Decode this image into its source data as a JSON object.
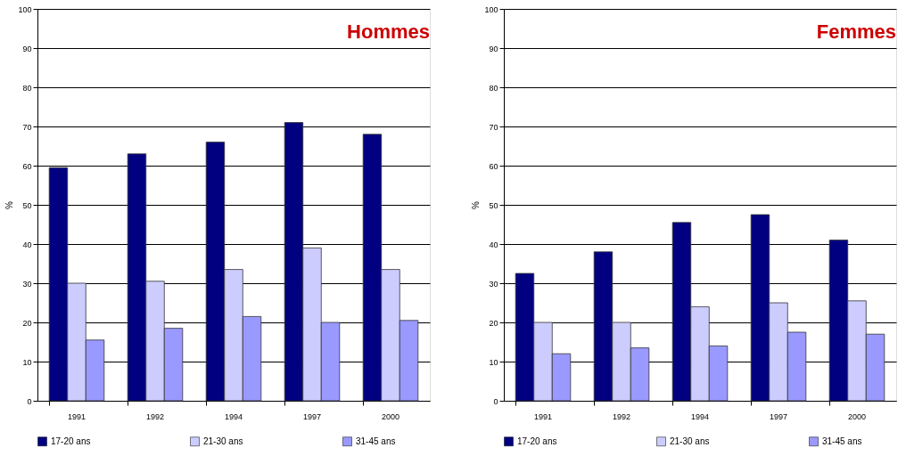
{
  "chart_data": [
    {
      "type": "bar",
      "title": "Hommes",
      "ylabel": "%",
      "categories": [
        "1991",
        "1992",
        "1994",
        "1997",
        "2000"
      ],
      "ylim": [
        0,
        100
      ],
      "yticks": [
        0,
        10,
        20,
        30,
        40,
        50,
        60,
        70,
        80,
        90,
        100
      ],
      "grid": "y",
      "legend": "bottom",
      "series": [
        {
          "name": "17-20 ans",
          "color": "#000080",
          "values": [
            59.5,
            63,
            66,
            71,
            68
          ]
        },
        {
          "name": "21-30 ans",
          "color": "#ccccff",
          "values": [
            30,
            30.5,
            33.5,
            39,
            33.5
          ]
        },
        {
          "name": "31-45 ans",
          "color": "#9999ff",
          "values": [
            15.5,
            18.5,
            21.5,
            20,
            20.5
          ]
        }
      ]
    },
    {
      "type": "bar",
      "title": "Femmes",
      "ylabel": "%",
      "categories": [
        "1991",
        "1992",
        "1994",
        "1997",
        "2000"
      ],
      "ylim": [
        0,
        100
      ],
      "yticks": [
        0,
        10,
        20,
        30,
        40,
        50,
        60,
        70,
        80,
        90,
        100
      ],
      "grid": "y",
      "legend": "bottom",
      "series": [
        {
          "name": "17-20 ans",
          "color": "#000080",
          "values": [
            32.5,
            38,
            45.5,
            47.5,
            41
          ]
        },
        {
          "name": "21-30 ans",
          "color": "#ccccff",
          "values": [
            20,
            20,
            24,
            25,
            25.5
          ]
        },
        {
          "name": "31-45 ans",
          "color": "#9999ff",
          "values": [
            12,
            13.5,
            14,
            17.5,
            17
          ]
        }
      ]
    }
  ]
}
